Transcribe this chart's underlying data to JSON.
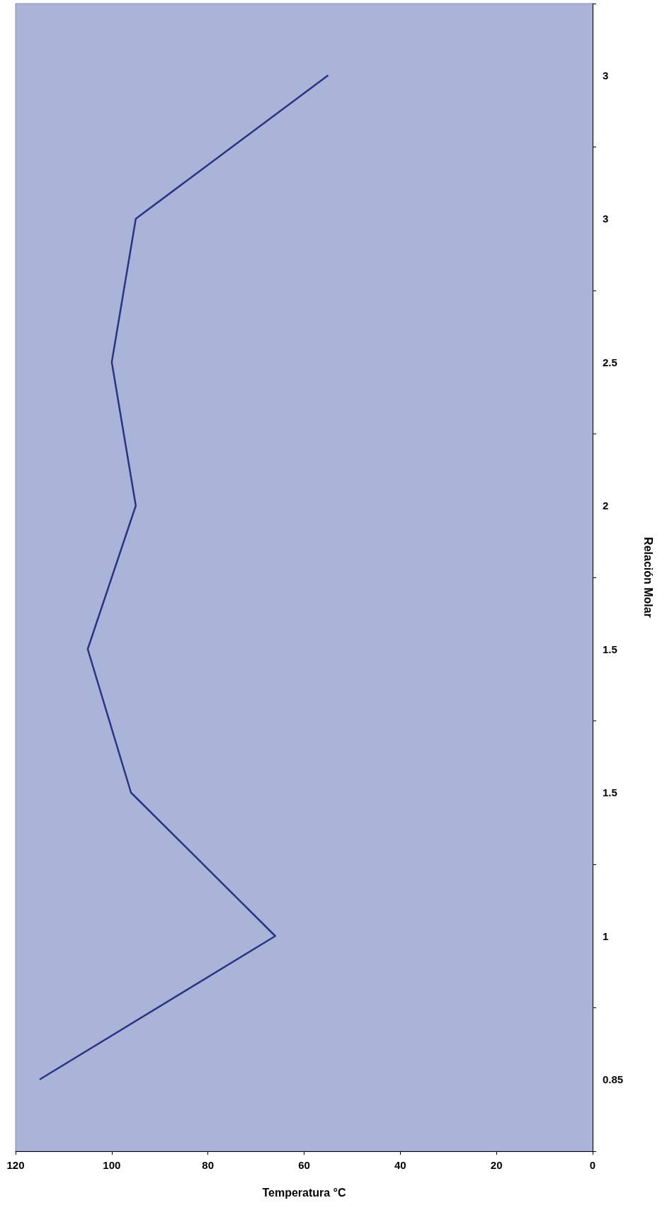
{
  "chart_data": {
    "type": "line",
    "orientation": "horizontal",
    "xlabel": "Temperatura °C",
    "ylabel": "Relación Molar",
    "categories": [
      "3",
      "3",
      "2.5",
      "2",
      "1.5",
      "1.5",
      "1",
      "0.85"
    ],
    "series": [
      {
        "color": "#2b3483",
        "values": [
          55,
          95,
          100,
          95,
          105,
          96,
          66,
          115
        ]
      }
    ],
    "xlim": [
      120,
      0
    ],
    "xticks": [
      120,
      100,
      80,
      60,
      40,
      20,
      0
    ],
    "grid": false,
    "marker": "none",
    "line_style": "solid"
  }
}
